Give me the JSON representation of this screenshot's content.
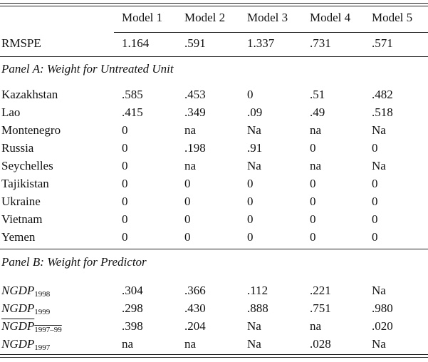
{
  "table": {
    "columns": [
      "Model 1",
      "Model 2",
      "Model 3",
      "Model 4",
      "Model 5"
    ],
    "rmspe": {
      "label": "RMSPE",
      "values": [
        "1.164",
        ".591",
        "1.337",
        ".731",
        ".571"
      ]
    },
    "panel_a": {
      "title": "Panel A: Weight for Untreated Unit",
      "rows": [
        {
          "label": "Kazakhstan",
          "values": [
            ".585",
            ".453",
            "0",
            ".51",
            ".482"
          ]
        },
        {
          "label": "Lao",
          "values": [
            ".415",
            ".349",
            ".09",
            ".49",
            ".518"
          ]
        },
        {
          "label": "Montenegro",
          "values": [
            "0",
            "na",
            "Na",
            "na",
            "Na"
          ]
        },
        {
          "label": "Russia",
          "values": [
            "0",
            ".198",
            ".91",
            "0",
            "0"
          ]
        },
        {
          "label": "Seychelles",
          "values": [
            "0",
            "na",
            "Na",
            "na",
            "Na"
          ]
        },
        {
          "label": "Tajikistan",
          "values": [
            "0",
            "0",
            "0",
            "0",
            "0"
          ]
        },
        {
          "label": "Ukraine",
          "values": [
            "0",
            "0",
            "0",
            "0",
            "0"
          ]
        },
        {
          "label": "Vietnam",
          "values": [
            "0",
            "0",
            "0",
            "0",
            "0"
          ]
        },
        {
          "label": "Yemen",
          "values": [
            "0",
            "0",
            "0",
            "0",
            "0"
          ]
        }
      ]
    },
    "panel_b": {
      "title": "Panel B: Weight for Predictor",
      "rows": [
        {
          "name": "NGDP",
          "sub": "1998",
          "values": [
            ".304",
            ".366",
            ".112",
            ".221",
            "Na"
          ]
        },
        {
          "name": "NGDP",
          "sub": "1999",
          "values": [
            ".298",
            ".430",
            ".888",
            ".751",
            ".980"
          ]
        },
        {
          "name": "NGDP",
          "sub": "1997–99",
          "values": [
            ".398",
            ".204",
            "Na",
            "na",
            ".020"
          ]
        },
        {
          "name": "NGDP",
          "sub": "1997",
          "values": [
            "na",
            "na",
            "Na",
            ".028",
            "Na"
          ]
        }
      ]
    }
  }
}
